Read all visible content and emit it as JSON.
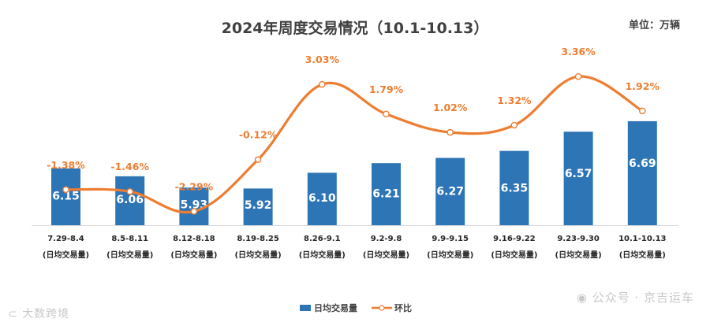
{
  "chart_data": {
    "type": "bar",
    "title": "2024年周度交易情况（10.1-10.13）",
    "unit_label": "单位：万辆",
    "categories": [
      "7.29-8.4",
      "8.5-8.11",
      "8.12-8.18",
      "8.19-8.25",
      "8.26-9.1",
      "9.2-9.8",
      "9.9-9.15",
      "9.16-9.22",
      "9.23-9.30",
      "10.1-10.13"
    ],
    "category_sublabel": "(日均交易量)",
    "series": [
      {
        "name": "日均交易量",
        "type": "bar",
        "color": "#2e75b6",
        "values": [
          6.15,
          6.06,
          5.93,
          5.92,
          6.1,
          6.21,
          6.27,
          6.35,
          6.57,
          6.69
        ],
        "labels": [
          "6.15",
          "6.06",
          "5.93",
          "5.92",
          "6.10",
          "6.21",
          "6.27",
          "6.35",
          "6.57",
          "6.69"
        ]
      },
      {
        "name": "环比",
        "type": "line",
        "color": "#ed7d31",
        "values": [
          -1.38,
          -1.46,
          -2.29,
          -0.12,
          3.03,
          1.79,
          1.02,
          1.32,
          3.36,
          1.92
        ],
        "labels": [
          "-1.38%",
          "-1.46%",
          "-2.29%",
          "-0.12%",
          "3.03%",
          "1.79%",
          "1.02%",
          "1.32%",
          "3.36%",
          "1.92%"
        ]
      }
    ],
    "legend_position": "bottom",
    "grid": false
  },
  "watermarks": {
    "right": "公众号 · 京吉运车",
    "left": "大数跨境"
  },
  "icons": {
    "watermark_right_icon": "wechat-icon",
    "watermark_left_icon": "logo-icon"
  }
}
